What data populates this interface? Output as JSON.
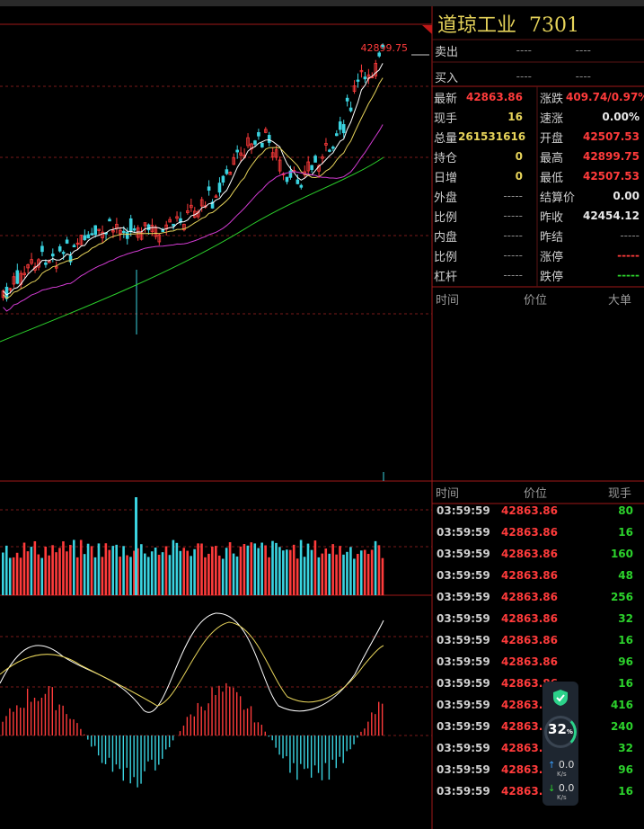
{
  "instrument": {
    "name": "道琼工业",
    "code": "7301"
  },
  "chart": {
    "high_label": "42899.75"
  },
  "order_book": {
    "sell": {
      "label": "卖出",
      "price": "----",
      "volume": "----"
    },
    "buy": {
      "label": "买入",
      "price": "----",
      "volume": "----"
    }
  },
  "quote": {
    "left": [
      {
        "label": "最新",
        "value": "42863.86",
        "color": "red"
      },
      {
        "label": "现手",
        "value": "16",
        "color": "yellow"
      },
      {
        "label": "总量",
        "value": "261531616",
        "color": "yellow"
      },
      {
        "label": "持仓",
        "value": "0",
        "color": "yellow"
      },
      {
        "label": "日增",
        "value": "0",
        "color": "yellow"
      },
      {
        "label": "外盘",
        "value": "-----",
        "color": "gray"
      },
      {
        "label": "比例",
        "value": "-----",
        "color": "gray"
      },
      {
        "label": "内盘",
        "value": "-----",
        "color": "gray"
      },
      {
        "label": "比例",
        "value": "-----",
        "color": "gray"
      },
      {
        "label": "杠杆",
        "value": "-----",
        "color": "gray"
      }
    ],
    "right": [
      {
        "label": "涨跌",
        "value": "409.74/0.97%",
        "color": "red"
      },
      {
        "label": "速涨",
        "value": "0.00%",
        "color": "white"
      },
      {
        "label": "开盘",
        "value": "42507.53",
        "color": "red"
      },
      {
        "label": "最高",
        "value": "42899.75",
        "color": "red"
      },
      {
        "label": "最低",
        "value": "42507.53",
        "color": "red"
      },
      {
        "label": "结算价",
        "value": "0.00",
        "color": "white"
      },
      {
        "label": "昨收",
        "value": "42454.12",
        "color": "white"
      },
      {
        "label": "昨结",
        "value": "-----",
        "color": "gray"
      },
      {
        "label": "涨停",
        "value": "-----",
        "color": "red"
      },
      {
        "label": "跌停",
        "value": "-----",
        "color": "green"
      }
    ]
  },
  "big_orders_header": {
    "time": "时间",
    "price": "价位",
    "big": "大单"
  },
  "trades_header": {
    "time": "时间",
    "price": "价位",
    "qty": "现手"
  },
  "trades": [
    {
      "time": "03:59:59",
      "price": "42863.86",
      "qty": "80"
    },
    {
      "time": "03:59:59",
      "price": "42863.86",
      "qty": "16"
    },
    {
      "time": "03:59:59",
      "price": "42863.86",
      "qty": "160"
    },
    {
      "time": "03:59:59",
      "price": "42863.86",
      "qty": "48"
    },
    {
      "time": "03:59:59",
      "price": "42863.86",
      "qty": "256"
    },
    {
      "time": "03:59:59",
      "price": "42863.86",
      "qty": "32"
    },
    {
      "time": "03:59:59",
      "price": "42863.86",
      "qty": "16"
    },
    {
      "time": "03:59:59",
      "price": "42863.86",
      "qty": "96"
    },
    {
      "time": "03:59:59",
      "price": "42863.86",
      "qty": "16"
    },
    {
      "time": "03:59:59",
      "price": "42863.86",
      "qty": "416"
    },
    {
      "time": "03:59:59",
      "price": "42863.86",
      "qty": "240"
    },
    {
      "time": "03:59:59",
      "price": "42863.86",
      "qty": "32"
    },
    {
      "time": "03:59:59",
      "price": "42863.86",
      "qty": "96"
    },
    {
      "time": "03:59:59",
      "price": "42863.86",
      "qty": "16"
    }
  ],
  "net_widget": {
    "percent": "32",
    "percent_unit": "%",
    "up": "0.0",
    "down": "0.0",
    "unit": "K/s"
  },
  "colors": {
    "up": "#ff3b3b",
    "down": "#3ad3e0",
    "grid": "#7a1a1a",
    "ma5": "#ffffff",
    "ma10": "#e6d35a",
    "ma20": "#d23bd2",
    "ma60": "#2cd22c"
  }
}
